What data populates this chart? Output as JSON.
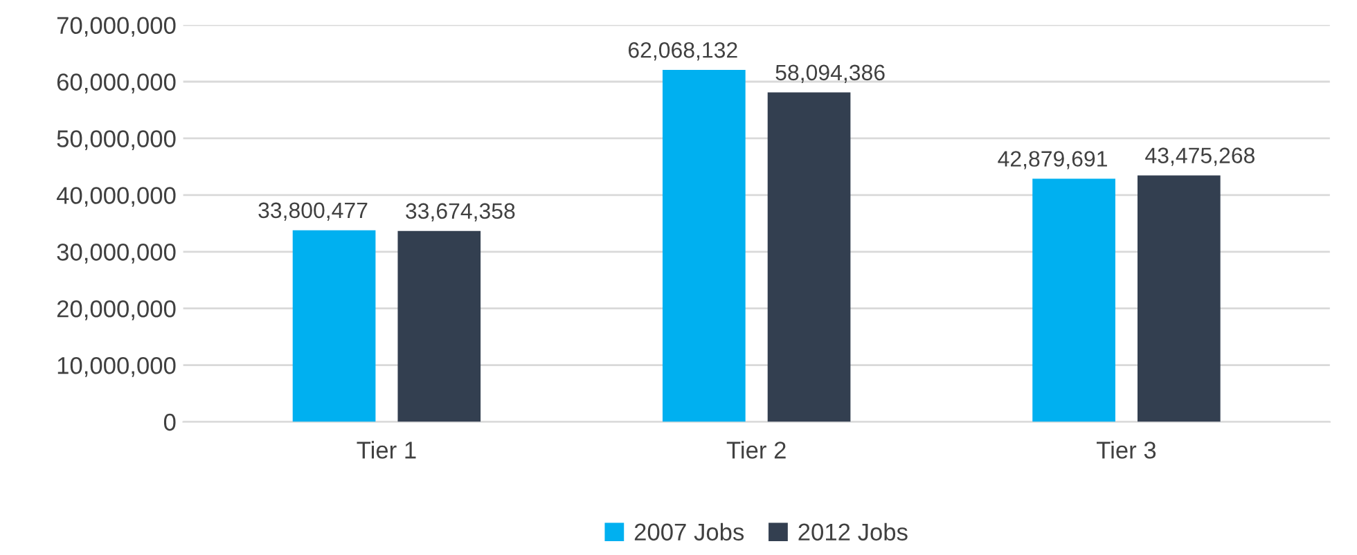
{
  "chart_data": {
    "type": "bar",
    "categories": [
      "Tier 1",
      "Tier 2",
      "Tier 3"
    ],
    "series": [
      {
        "name": "2007 Jobs",
        "color": "#00b0f0",
        "values": [
          33800477,
          62068132,
          42879691
        ],
        "value_labels": [
          "33,800,477",
          "62,068,132",
          "42,879,691"
        ]
      },
      {
        "name": "2012 Jobs",
        "color": "#333f50",
        "values": [
          33674358,
          58094386,
          43475268
        ],
        "value_labels": [
          "33,674,358",
          "58,094,386",
          "43,475,268"
        ]
      }
    ],
    "ylim": [
      0,
      70000000
    ],
    "yticks": [
      {
        "value": 0,
        "label": "0"
      },
      {
        "value": 10000000,
        "label": "10,000,000"
      },
      {
        "value": 20000000,
        "label": "20,000,000"
      },
      {
        "value": 30000000,
        "label": "30,000,000"
      },
      {
        "value": 40000000,
        "label": "40,000,000"
      },
      {
        "value": 50000000,
        "label": "50,000,000"
      },
      {
        "value": 60000000,
        "label": "60,000,000"
      },
      {
        "value": 70000000,
        "label": "70,000,000"
      }
    ],
    "grid": "y",
    "legend": "bottom"
  }
}
